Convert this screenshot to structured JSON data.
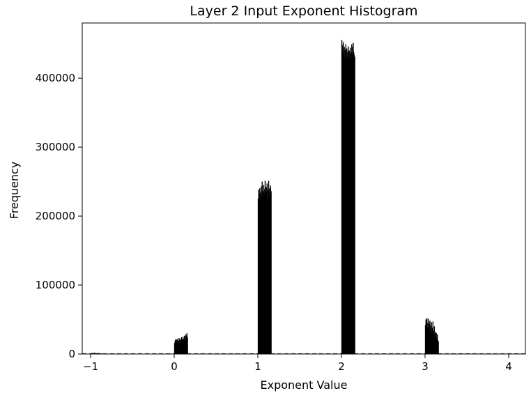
{
  "chart_data": {
    "type": "bar",
    "title": "Layer 2 Input Exponent Histogram",
    "xlabel": "Exponent Value",
    "ylabel": "Frequency",
    "xlim": [
      -1.1,
      4.2
    ],
    "ylim": [
      0,
      480000
    ],
    "x_ticks": [
      -1,
      0,
      1,
      2,
      3,
      4
    ],
    "x_tick_labels": [
      "−1",
      "0",
      "1",
      "2",
      "3",
      "4"
    ],
    "y_ticks": [
      0,
      100000,
      200000,
      300000,
      400000
    ],
    "y_tick_labels": [
      "0",
      "100000",
      "200000",
      "300000",
      "400000"
    ],
    "grid": false,
    "legend": "none",
    "bar_color": "#000000",
    "bin_width": 0.006,
    "clusters": [
      {
        "range": [
          -1.0,
          -0.86
        ],
        "values": [
          300,
          800,
          1500,
          600,
          1200,
          400,
          900,
          1800,
          500,
          300,
          1100,
          700,
          400,
          200,
          900,
          300,
          1400,
          600,
          300,
          200,
          500,
          800,
          300
        ]
      },
      {
        "range": [
          0.0,
          0.16
        ],
        "values": [
          16000,
          19000,
          21000,
          20000,
          18000,
          22000,
          20000,
          17000,
          19000,
          23000,
          21000,
          20000,
          18000,
          22000,
          24000,
          19000,
          21000,
          25000,
          22000,
          20000,
          26000,
          23000,
          28000,
          21000,
          27000,
          30000,
          24000
        ]
      },
      {
        "range": [
          1.0,
          1.16
        ],
        "values": [
          225000,
          238000,
          232000,
          240000,
          229000,
          234000,
          243000,
          231000,
          250000,
          236000,
          228000,
          245000,
          233000,
          239000,
          251000,
          230000,
          242000,
          235000,
          247000,
          226000,
          238000,
          251000,
          233000,
          240000,
          229000,
          244000,
          236000
        ]
      },
      {
        "range": [
          2.0,
          2.16
        ],
        "values": [
          455000,
          448000,
          440000,
          452000,
          436000,
          445000,
          430000,
          441000,
          449000,
          433000,
          443000,
          428000,
          438000,
          446000,
          432000,
          440000,
          436000,
          444000,
          429000,
          437000,
          449000,
          435000,
          445000,
          451000,
          438000,
          434000,
          431000
        ]
      },
      {
        "range": [
          3.0,
          3.16
        ],
        "values": [
          42000,
          50000,
          47000,
          52000,
          39000,
          45000,
          51000,
          36000,
          44000,
          48000,
          33000,
          41000,
          46000,
          30000,
          38000,
          47000,
          29000,
          35000,
          40000,
          27000,
          32000,
          25000,
          30000,
          22000,
          28000,
          20000,
          18000
        ]
      }
    ],
    "dashed_baseline": {
      "from": -1.1,
      "to": 4.2,
      "value": 0,
      "color": "#555555"
    }
  }
}
